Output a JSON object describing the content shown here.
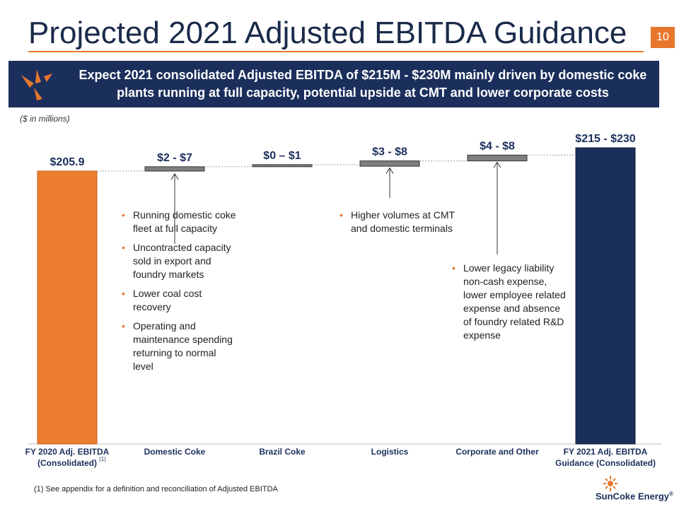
{
  "slide": {
    "title": "Projected 2021 Adjusted EBITDA Guidance",
    "page_number": "10",
    "banner": "Expect 2021 consolidated Adjusted EBITDA of $215M - $230M mainly driven by domestic coke plants running at full capacity, potential upside at CMT and lower corporate costs",
    "units_note": "($ in millions)",
    "footnote": "(1)  See appendix for a definition and reconciliation of Adjusted EBITDA",
    "logo_text": "SunCoke Energy",
    "logo_mark": "®"
  },
  "colors": {
    "start": "#ed7d31",
    "delta": "#7f7f7f",
    "end": "#1b2f5c",
    "accent": "#e8772e",
    "navy": "#1b2f5c"
  },
  "chart_data": {
    "type": "bar",
    "subtype": "waterfall",
    "categories": [
      "FY 2020 Adj. EBITDA (Consolidated)",
      "Domestic Coke",
      "Brazil Coke",
      "Logistics",
      "Corporate and Other",
      "FY 2021 Adj. EBITDA Guidance (Consolidated)"
    ],
    "category_lines": [
      [
        "FY 2020 Adj. EBITDA",
        "(Consolidated)"
      ],
      [
        "Domestic Coke"
      ],
      [
        "Brazil Coke"
      ],
      [
        "Logistics"
      ],
      [
        "Corporate and Other"
      ],
      [
        "FY 2021 Adj. EBITDA",
        "Guidance (Consolidated)"
      ]
    ],
    "category_superscripts": [
      "(1)",
      "",
      "",
      "",
      "",
      ""
    ],
    "bars": [
      {
        "kind": "total",
        "value": 205.9,
        "label": "$205.9"
      },
      {
        "kind": "delta",
        "low": 2,
        "high": 7,
        "label": "$2 - $7"
      },
      {
        "kind": "delta",
        "low": 0,
        "high": 1,
        "label": "$0 – $1"
      },
      {
        "kind": "delta",
        "low": 3,
        "high": 8,
        "label": "$3 - $8"
      },
      {
        "kind": "delta",
        "low": 4,
        "high": 8,
        "label": "$4 - $8"
      },
      {
        "kind": "total",
        "low": 215,
        "high": 230,
        "label": "$215 - $230"
      }
    ],
    "annotations": [
      {
        "category": "Domestic Coke",
        "bullets": [
          "Running domestic coke fleet at full capacity",
          "Uncontracted capacity sold in export and foundry markets",
          "Lower coal cost recovery",
          "Operating and maintenance spending returning to normal level"
        ]
      },
      {
        "category": "Logistics",
        "bullets": [
          "Higher volumes at CMT and domestic terminals"
        ]
      },
      {
        "category": "Corporate and Other",
        "bullets": [
          "Lower legacy liability non-cash expense, lower employee related expense and absence of foundry related R&D expense"
        ]
      }
    ]
  }
}
